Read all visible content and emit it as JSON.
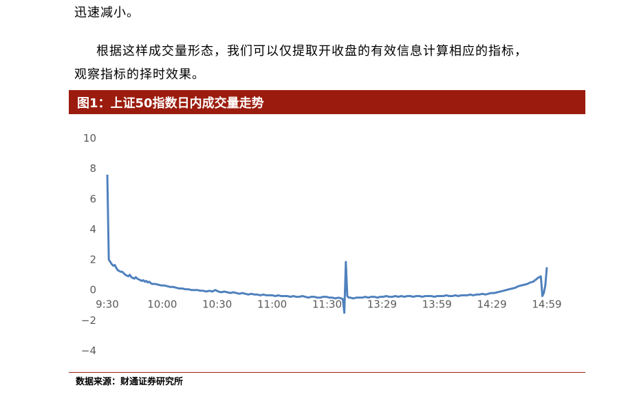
{
  "text": {
    "p1": "迅速减小。",
    "p2": "根据这样成交量形态，我们可以仅提取开收盘的有效信息计算相应的指标，",
    "p3": "观察指标的择时效果。"
  },
  "figure": {
    "title": "图1：上证50指数日内成交量走势",
    "source": "数据来源：财通证券研究所",
    "banner_color": "#9b1c0e"
  },
  "chart_data": {
    "type": "line",
    "title": "",
    "xlabel": "",
    "ylabel": "",
    "ylim": [
      -4,
      10
    ],
    "yticks": [
      "−4",
      "−2",
      "0",
      "2",
      "4",
      "6",
      "8",
      "10"
    ],
    "ytick_values": [
      -4,
      -2,
      0,
      2,
      4,
      6,
      8,
      10
    ],
    "x_tick_labels": [
      "9:30",
      "10:00",
      "10:30",
      "11:00",
      "11:30",
      "13:29",
      "13:59",
      "14:29",
      "14:59"
    ],
    "grid": false,
    "series": [
      {
        "color": "#4f81bd",
        "points": [
          [
            0,
            7.6
          ],
          [
            1,
            2.0
          ],
          [
            2,
            1.85
          ],
          [
            3,
            1.7
          ],
          [
            4,
            1.6
          ],
          [
            5,
            1.65
          ],
          [
            6,
            1.45
          ],
          [
            7,
            1.3
          ],
          [
            8,
            1.25
          ],
          [
            9,
            1.2
          ],
          [
            10,
            1.2
          ],
          [
            11,
            1.1
          ],
          [
            12,
            1.0
          ],
          [
            13,
            0.95
          ],
          [
            14,
            0.9
          ],
          [
            15,
            1.0
          ],
          [
            16,
            0.85
          ],
          [
            17,
            0.8
          ],
          [
            18,
            0.75
          ],
          [
            19,
            0.85
          ],
          [
            20,
            0.75
          ],
          [
            21,
            0.7
          ],
          [
            22,
            0.65
          ],
          [
            23,
            0.6
          ],
          [
            24,
            0.65
          ],
          [
            25,
            0.55
          ],
          [
            26,
            0.6
          ],
          [
            27,
            0.5
          ],
          [
            28,
            0.55
          ],
          [
            29,
            0.45
          ],
          [
            30,
            0.4
          ],
          [
            32,
            0.4
          ],
          [
            34,
            0.35
          ],
          [
            36,
            0.3
          ],
          [
            38,
            0.3
          ],
          [
            40,
            0.25
          ],
          [
            42,
            0.2
          ],
          [
            44,
            0.2
          ],
          [
            46,
            0.15
          ],
          [
            48,
            0.1
          ],
          [
            50,
            0.1
          ],
          [
            52,
            0.05
          ],
          [
            54,
            0.05
          ],
          [
            56,
            0.0
          ],
          [
            58,
            0.0
          ],
          [
            60,
            0.0
          ],
          [
            62,
            -0.05
          ],
          [
            64,
            -0.05
          ],
          [
            66,
            -0.1
          ],
          [
            68,
            -0.05
          ],
          [
            70,
            -0.1
          ],
          [
            72,
            0.0
          ],
          [
            74,
            -0.1
          ],
          [
            76,
            -0.15
          ],
          [
            78,
            -0.1
          ],
          [
            80,
            -0.15
          ],
          [
            82,
            -0.2
          ],
          [
            84,
            -0.15
          ],
          [
            86,
            -0.2
          ],
          [
            88,
            -0.25
          ],
          [
            90,
            -0.2
          ],
          [
            92,
            -0.25
          ],
          [
            94,
            -0.3
          ],
          [
            96,
            -0.25
          ],
          [
            98,
            -0.3
          ],
          [
            100,
            -0.3
          ],
          [
            102,
            -0.35
          ],
          [
            104,
            -0.3
          ],
          [
            106,
            -0.35
          ],
          [
            108,
            -0.35
          ],
          [
            110,
            -0.35
          ],
          [
            112,
            -0.4
          ],
          [
            114,
            -0.35
          ],
          [
            116,
            -0.4
          ],
          [
            118,
            -0.4
          ],
          [
            120,
            -0.4
          ],
          [
            122,
            -0.45
          ],
          [
            124,
            -0.4
          ],
          [
            126,
            -0.45
          ],
          [
            128,
            -0.45
          ],
          [
            130,
            -0.4
          ],
          [
            132,
            -0.45
          ],
          [
            134,
            -0.5
          ],
          [
            136,
            -0.45
          ],
          [
            138,
            -0.45
          ],
          [
            140,
            -0.5
          ],
          [
            142,
            -0.5
          ],
          [
            144,
            -0.45
          ],
          [
            146,
            -0.45
          ],
          [
            148,
            -0.5
          ],
          [
            150,
            -0.5
          ],
          [
            152,
            -0.55
          ],
          [
            154,
            -0.5
          ],
          [
            156,
            -0.55
          ],
          [
            157,
            -0.6
          ],
          [
            158,
            -1.5
          ],
          [
            159,
            1.85
          ],
          [
            160,
            -0.4
          ],
          [
            161,
            -0.5
          ],
          [
            162,
            -0.5
          ],
          [
            164,
            -0.55
          ],
          [
            166,
            -0.5
          ],
          [
            168,
            -0.5
          ],
          [
            170,
            -0.5
          ],
          [
            172,
            -0.45
          ],
          [
            174,
            -0.5
          ],
          [
            176,
            -0.45
          ],
          [
            178,
            -0.45
          ],
          [
            180,
            -0.5
          ],
          [
            182,
            -0.45
          ],
          [
            184,
            -0.45
          ],
          [
            186,
            -0.4
          ],
          [
            188,
            -0.45
          ],
          [
            190,
            -0.45
          ],
          [
            192,
            -0.4
          ],
          [
            194,
            -0.45
          ],
          [
            196,
            -0.4
          ],
          [
            198,
            -0.45
          ],
          [
            200,
            -0.4
          ],
          [
            202,
            -0.4
          ],
          [
            204,
            -0.45
          ],
          [
            206,
            -0.4
          ],
          [
            208,
            -0.4
          ],
          [
            210,
            -0.45
          ],
          [
            212,
            -0.4
          ],
          [
            214,
            -0.4
          ],
          [
            216,
            -0.4
          ],
          [
            218,
            -0.45
          ],
          [
            220,
            -0.4
          ],
          [
            222,
            -0.4
          ],
          [
            224,
            -0.4
          ],
          [
            226,
            -0.35
          ],
          [
            228,
            -0.4
          ],
          [
            230,
            -0.4
          ],
          [
            232,
            -0.35
          ],
          [
            234,
            -0.4
          ],
          [
            236,
            -0.35
          ],
          [
            238,
            -0.35
          ],
          [
            240,
            -0.35
          ],
          [
            242,
            -0.3
          ],
          [
            244,
            -0.35
          ],
          [
            246,
            -0.3
          ],
          [
            248,
            -0.3
          ],
          [
            250,
            -0.25
          ],
          [
            252,
            -0.3
          ],
          [
            254,
            -0.25
          ],
          [
            256,
            -0.2
          ],
          [
            258,
            -0.2
          ],
          [
            260,
            -0.15
          ],
          [
            262,
            -0.1
          ],
          [
            264,
            -0.05
          ],
          [
            266,
            0.0
          ],
          [
            268,
            0.05
          ],
          [
            270,
            0.1
          ],
          [
            272,
            0.15
          ],
          [
            274,
            0.25
          ],
          [
            276,
            0.3
          ],
          [
            278,
            0.35
          ],
          [
            280,
            0.4
          ],
          [
            282,
            0.5
          ],
          [
            284,
            0.55
          ],
          [
            285,
            0.65
          ],
          [
            286,
            0.7
          ],
          [
            287,
            0.8
          ],
          [
            288,
            0.85
          ],
          [
            289,
            0.9
          ],
          [
            290,
            -0.4
          ],
          [
            291,
            -0.2
          ],
          [
            292,
            0.3
          ],
          [
            293,
            1.5
          ]
        ]
      }
    ]
  }
}
